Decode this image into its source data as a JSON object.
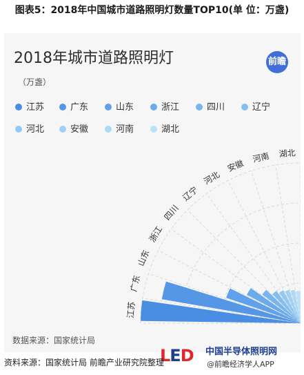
{
  "figure_title": "图表5：2018年中国城市道路照明灯数量TOP10(单 位：万盏)",
  "brand_badge": "前瞻",
  "source_inner": "数据来源：国家统计局",
  "source_outer": "资料来源：国家统计局 前瞻产业研究院整理",
  "footer": {
    "led_l": "L",
    "led_e": "E",
    "led_d": "D",
    "site_name": "中国半导体照明网",
    "wechat": "@前瞻经济学人APP"
  },
  "colors": [
    "#4a8ee3",
    "#5597e6",
    "#60a1e9",
    "#6babeb",
    "#78b5ee",
    "#85bff0",
    "#92c8f2",
    "#9fd1f4",
    "#acd9f6",
    "#b9e1f8"
  ],
  "chart_data": {
    "type": "bar",
    "subtype": "polar-radial-bar",
    "title": "2018年城市道路照明灯",
    "unit": "（万盏）",
    "categories": [
      "江苏",
      "广东",
      "山东",
      "浙江",
      "四川",
      "辽宁",
      "河北",
      "安徽",
      "河南",
      "湖北"
    ],
    "values": [
      468,
      412,
      230,
      178,
      140,
      118,
      109,
      103,
      99,
      94
    ],
    "legend_position": "top"
  }
}
